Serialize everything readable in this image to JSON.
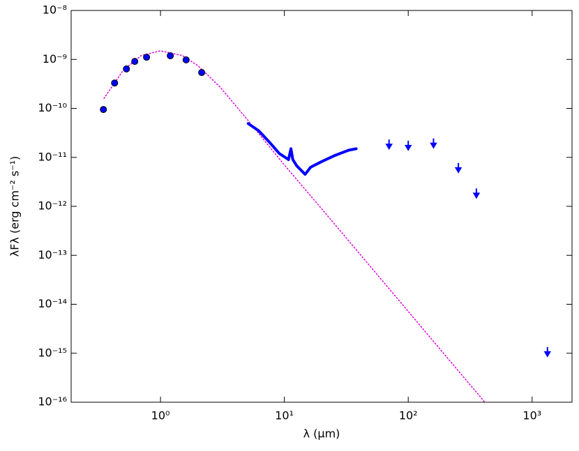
{
  "chart_data": {
    "type": "line",
    "xlabel": "λ (μm)",
    "ylabel": "λFλ (erg cm⁻² s⁻¹)",
    "xscale": "log",
    "yscale": "log",
    "xlim": [
      0.19,
      2100
    ],
    "ylim": [
      1e-16,
      1e-08
    ],
    "xticks": [
      {
        "value": 1,
        "label": "10⁰"
      },
      {
        "value": 10,
        "label": "10¹"
      },
      {
        "value": 100,
        "label": "10²"
      },
      {
        "value": 1000,
        "label": "10³"
      }
    ],
    "yticks": [
      {
        "value": 1e-16,
        "label": "10⁻¹⁶"
      },
      {
        "value": 1e-15,
        "label": "10⁻¹⁵"
      },
      {
        "value": 1e-14,
        "label": "10⁻¹⁴"
      },
      {
        "value": 1e-13,
        "label": "10⁻¹³"
      },
      {
        "value": 1e-12,
        "label": "10⁻¹²"
      },
      {
        "value": 1e-11,
        "label": "10⁻¹¹"
      },
      {
        "value": 1e-10,
        "label": "10⁻¹⁰"
      },
      {
        "value": 1e-09,
        "label": "10⁻⁹"
      },
      {
        "value": 1e-08,
        "label": "10⁻⁸"
      }
    ],
    "series": [
      {
        "kind": "dotted",
        "color": "#dd00dd",
        "x": [
          0.35,
          0.5,
          0.7,
          1.0,
          1.5,
          2,
          3,
          5,
          10,
          20,
          41.5,
          415
        ],
        "values": [
          1.6e-10,
          6e-10,
          1.2e-09,
          1.5e-09,
          1.2e-09,
          7.5e-10,
          2.8e-10,
          6e-11,
          7e-12,
          8.9e-13,
          1e-13,
          1e-16
        ]
      },
      {
        "kind": "circle",
        "color": "#0000ff",
        "x": [
          0.346,
          0.426,
          0.531,
          0.62,
          0.772,
          1.2,
          1.61,
          2.15
        ],
        "values": [
          9.5e-11,
          3.3e-10,
          6.4e-10,
          9.1e-10,
          1.11e-09,
          1.19e-09,
          9.8e-10,
          5.4e-10
        ]
      },
      {
        "kind": "solid",
        "color": "#0000ff",
        "x": [
          5.1,
          6.2,
          7.5,
          9.1,
          10.4,
          10.8,
          11.3,
          11.7,
          12.6,
          14.7,
          16.3,
          19.8,
          25.7,
          33,
          38
        ],
        "values": [
          4.9e-11,
          3.5e-11,
          2.1e-11,
          1.2e-11,
          9.6e-12,
          9e-12,
          1.5e-11,
          9e-12,
          6.7e-12,
          4.5e-12,
          6.3e-12,
          8.1e-12,
          1.1e-11,
          1.4e-11,
          1.5e-11
        ]
      },
      {
        "kind": "arrow",
        "color": "#0000ff",
        "x": [
          70,
          100,
          160,
          254,
          355,
          1330
        ],
        "values": [
          1.9e-11,
          1.8e-11,
          2e-11,
          6.3e-12,
          1.9e-12,
          1.1e-15
        ]
      }
    ]
  }
}
